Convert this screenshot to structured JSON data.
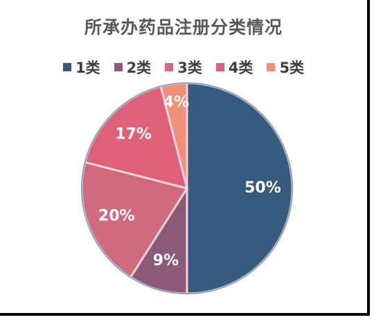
{
  "chart_data": {
    "type": "pie",
    "title": "所承办药品注册分类情况",
    "categories": [
      "1类",
      "2类",
      "3类",
      "4类",
      "5类"
    ],
    "values": [
      50,
      9,
      20,
      17,
      4
    ],
    "labels": [
      "50%",
      "9%",
      "20%",
      "17%",
      "4%"
    ],
    "colors": [
      "#375a7f",
      "#8c5a78",
      "#d06a7e",
      "#e0607a",
      "#f0907a"
    ],
    "legend_position": "top"
  }
}
